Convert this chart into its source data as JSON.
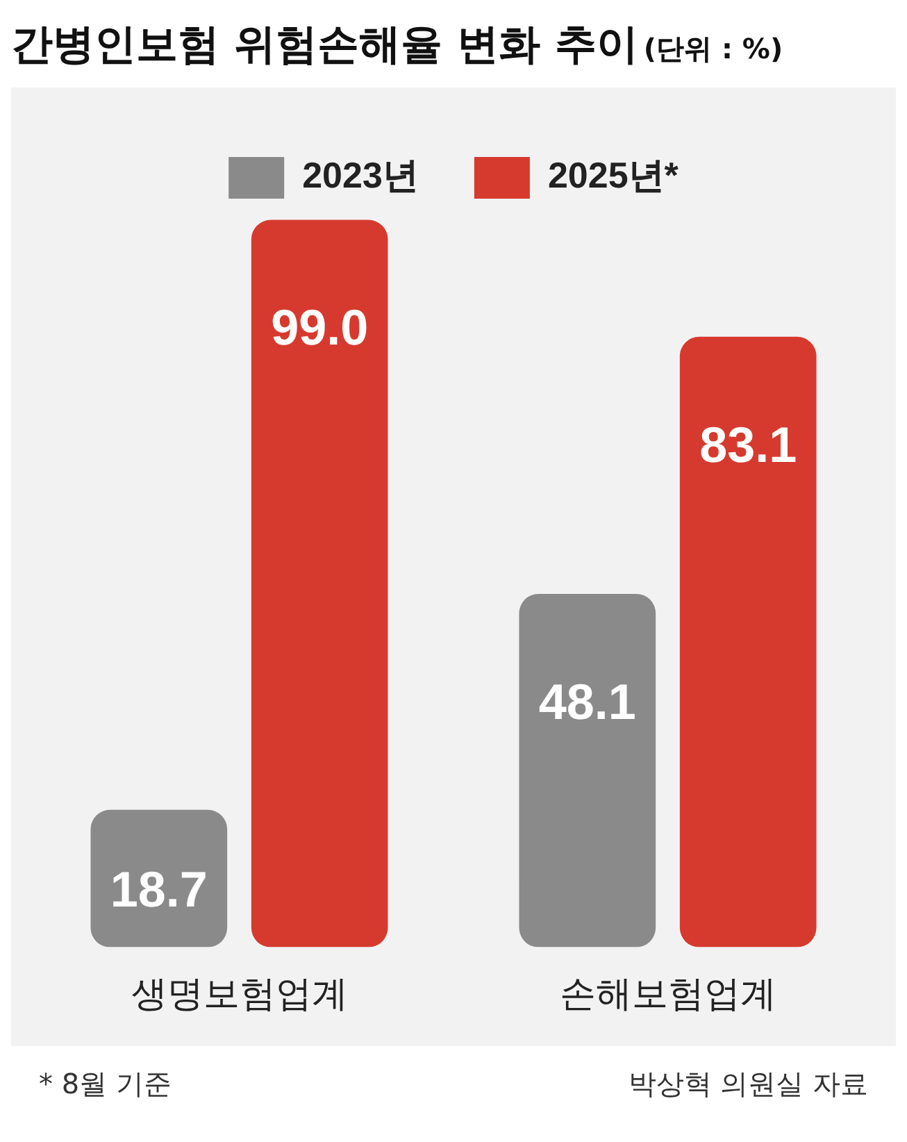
{
  "chart_data": {
    "type": "bar",
    "title": "간병인보험 위험손해율 변화 추이",
    "subtitle": "(단위 : %)",
    "categories": [
      "생명보험업계",
      "손해보험업계"
    ],
    "series": [
      {
        "name": "2023년",
        "color": "#8a8a8a",
        "values": [
          18.7,
          48.1
        ],
        "value_labels": [
          "18.7",
          "48.1"
        ]
      },
      {
        "name": "2025년*",
        "color": "#d63a2e",
        "values": [
          99.0,
          83.1
        ],
        "value_labels": [
          "99.0",
          "83.1"
        ]
      }
    ],
    "legend": "top",
    "grid": false,
    "annotations": [
      "* 8월 기준",
      "박상혁 의원실 자료"
    ]
  }
}
